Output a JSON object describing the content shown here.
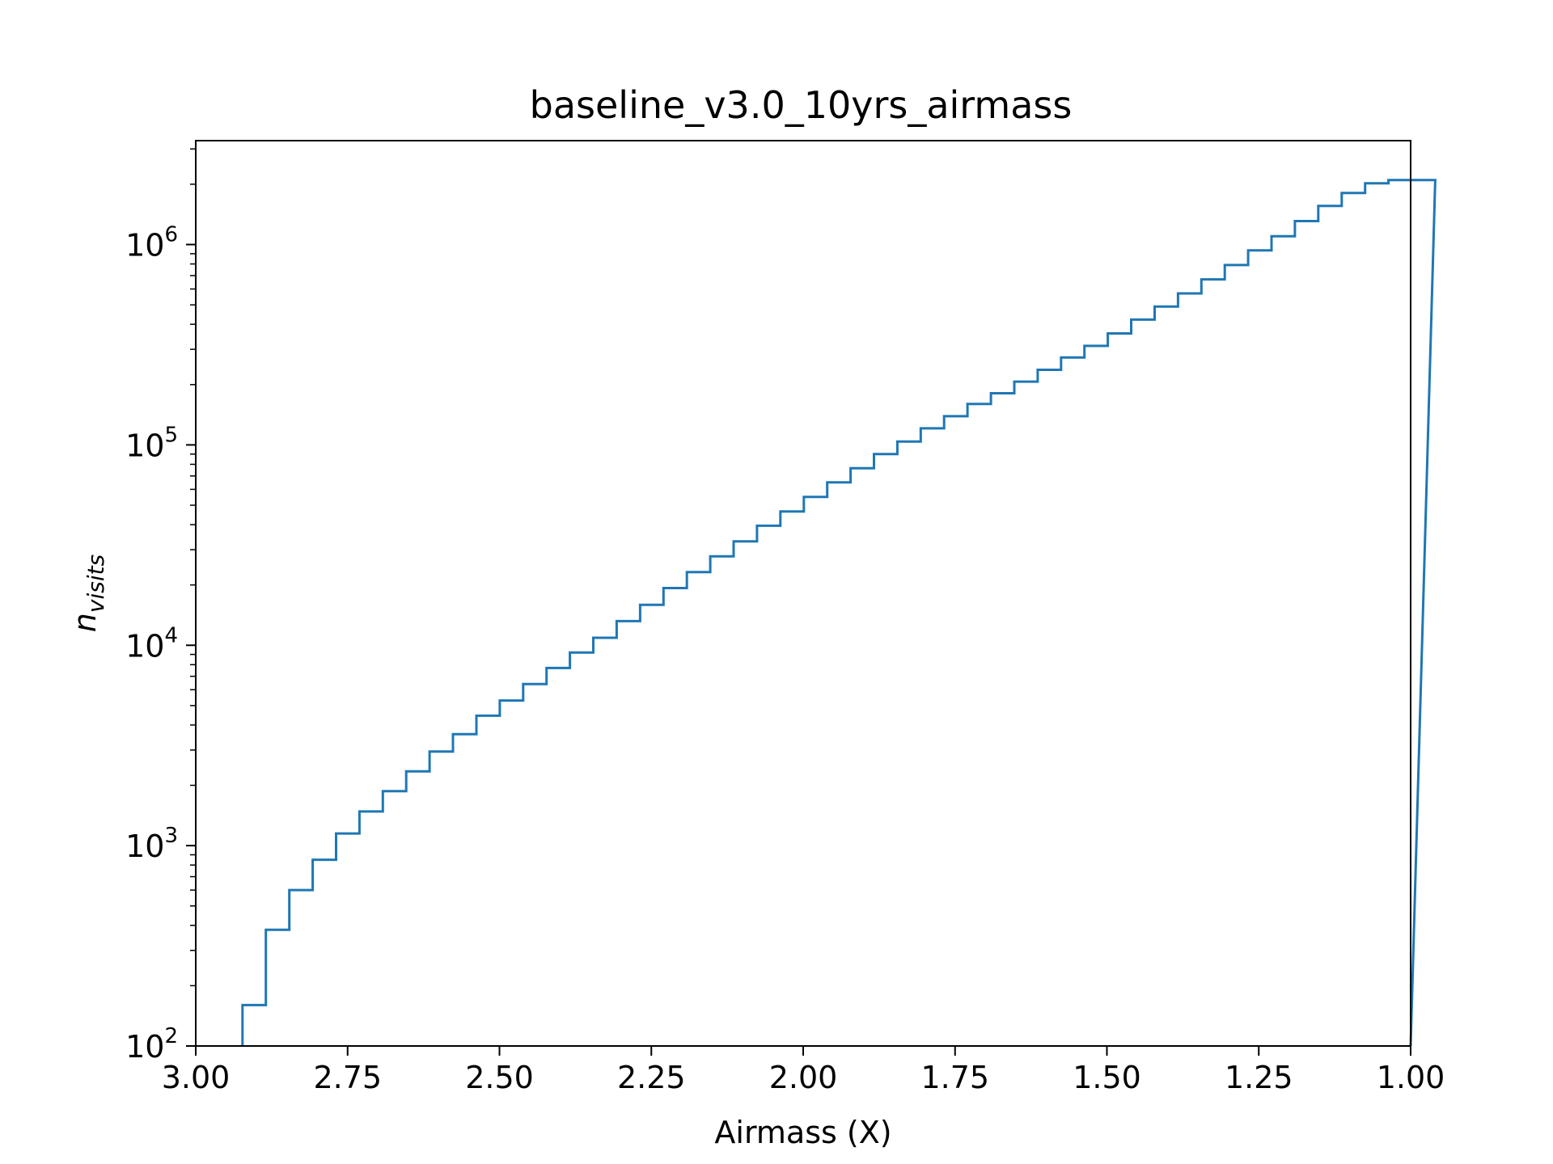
{
  "chart_data": {
    "type": "histogram-step",
    "title": "baseline_v3.0_10yrs_airmass",
    "xlabel": "Airmass (X)",
    "ylabel_main": "n",
    "ylabel_sub": "visits",
    "xlim": [
      3.0,
      1.0
    ],
    "ylim": [
      100,
      3300000
    ],
    "yscale": "log",
    "x_ticks": [
      "3.00",
      "2.75",
      "2.50",
      "2.25",
      "2.00",
      "1.75",
      "1.50",
      "1.25",
      "1.00"
    ],
    "x_tick_values": [
      3.0,
      2.75,
      2.5,
      2.25,
      2.0,
      1.75,
      1.5,
      1.25,
      1.0
    ],
    "y_ticks": [
      {
        "value": 100,
        "base": "10",
        "exp": "2"
      },
      {
        "value": 1000,
        "base": "10",
        "exp": "3"
      },
      {
        "value": 10000,
        "base": "10",
        "exp": "4"
      },
      {
        "value": 100000,
        "base": "10",
        "exp": "5"
      },
      {
        "value": 1000000,
        "base": "10",
        "exp": "6"
      }
    ],
    "grid": false,
    "color": "#1f77b4",
    "bin_width": 0.0385,
    "series": [
      {
        "bin_edges_start": 2.923,
        "counts": [
          160,
          380,
          600,
          850,
          1150,
          1480,
          1870,
          2350,
          2950,
          3600,
          4450,
          5300,
          6400,
          7700,
          9200,
          10900,
          13200,
          15900,
          19300,
          23200,
          27800,
          33000,
          39500,
          46500,
          55000,
          65000,
          76500,
          90000,
          104000,
          121000,
          139000,
          160000,
          181000,
          207000,
          237000,
          273000,
          312000,
          360000,
          422000,
          490000,
          570000,
          670000,
          790000,
          935000,
          1100000,
          1310000,
          1560000,
          1810000,
          2020000,
          2100000,
          2100000
        ]
      }
    ]
  }
}
